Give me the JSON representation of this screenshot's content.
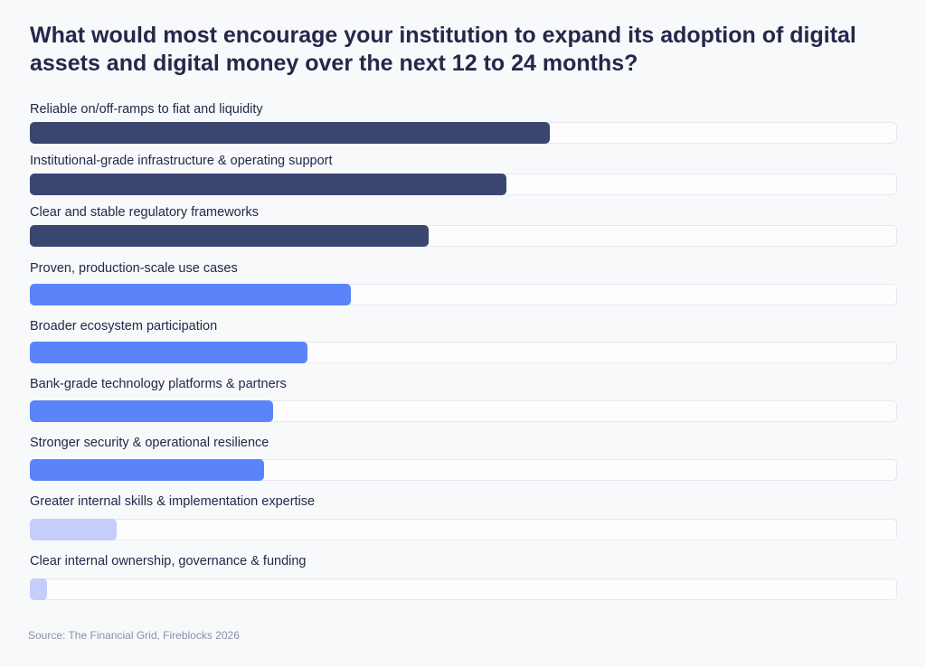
{
  "chart_data": {
    "type": "bar",
    "orientation": "horizontal",
    "title": "What would most encourage your institution to expand its adoption of digital assets and digital money over the next 12 to 24 months?",
    "categories": [
      "Reliable on/off-ramps to fiat and liquidity",
      "Institutional-grade infrastructure & operating support",
      "Clear and stable regulatory frameworks",
      "Proven, production-scale use cases",
      "Broader ecosystem participation",
      "Bank-grade technology platforms & partners",
      "Stronger security & operational resilience",
      "Greater internal skills & implementation expertise",
      "Clear internal ownership, governance & funding"
    ],
    "values": [
      60,
      55,
      46,
      37,
      32,
      28,
      27,
      10,
      2
    ],
    "value_unit": "percent of track (estimated, no axis shown)",
    "xlim": [
      0,
      100
    ],
    "colors": [
      "#3a4570",
      "#3a4570",
      "#3a4570",
      "#5b84fa",
      "#5b84fa",
      "#5b84fa",
      "#5b84fa",
      "#c6cdfb",
      "#c6cdfb"
    ],
    "grid": false,
    "legend": "none",
    "source": "Source: The Financial Grid, Fireblocks 2026"
  }
}
